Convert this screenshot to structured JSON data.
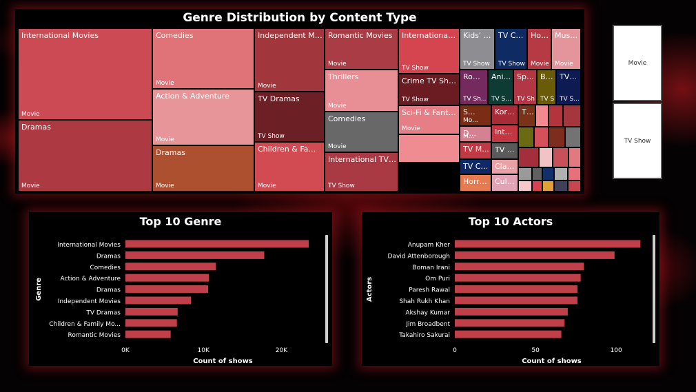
{
  "treemap": {
    "title": "Genre Distribution by Content Type",
    "tiles": [
      {
        "name": "International Movies",
        "type": "Movie",
        "color": "#cc4a54"
      },
      {
        "name": "Dramas",
        "type": "Movie",
        "color": "#ad3a42"
      },
      {
        "name": "Comedies",
        "type": "Movie",
        "color": "#e07378"
      },
      {
        "name": "Action & Adventure",
        "type": "Movie",
        "color": "#e8959a"
      },
      {
        "name": "Dramas",
        "type": "Movie",
        "color": "#ac5030"
      },
      {
        "name": "Independent Mov...",
        "type": "Movie",
        "color": "#a1363c"
      },
      {
        "name": "TV Dramas",
        "type": "TV Show",
        "color": "#6c2026"
      },
      {
        "name": "Children & Family ...",
        "type": "Movie",
        "color": "#d24a52"
      },
      {
        "name": "Romantic Movies",
        "type": "Movie",
        "color": "#a93c44"
      },
      {
        "name": "Thrillers",
        "type": "Movie",
        "color": "#e88f95"
      },
      {
        "name": "Comedies",
        "type": "Movie",
        "color": "#686868"
      },
      {
        "name": "International TV Sho...",
        "type": "TV Show",
        "color": "#a93a44"
      },
      {
        "name": "International T...",
        "type": "TV Show",
        "color": "#d4454f"
      },
      {
        "name": "Crime TV Shows",
        "type": "TV Show",
        "color": "#6a1c22"
      },
      {
        "name": "Sci-Fi & Fantasy",
        "type": "Movie",
        "color": "#e77d85"
      },
      {
        "name": "Kids' TV",
        "type": "TV Show",
        "color": "#8e8e92"
      },
      {
        "name": "TV Comedies",
        "type": "TV Show",
        "color": "#0e2b63"
      },
      {
        "name": "Horror ...",
        "type": "Movie",
        "color": "#b53a44"
      },
      {
        "name": "Musi...",
        "type": "Movie",
        "color": "#e3959b"
      },
      {
        "name": "Rom...",
        "type": "TV Sh...",
        "color": "#742a5e"
      },
      {
        "name": "Ani...",
        "type": "TV S...",
        "color": "#0e3c34"
      },
      {
        "name": "Span...",
        "type": "TV Sh...",
        "color": "#b03743"
      },
      {
        "name": "Britis...",
        "type": "TV Sh...",
        "color": "#6a5b08"
      },
      {
        "name": "TV ...",
        "type": "TV S...",
        "color": "#0e1a52"
      },
      {
        "name": "S...",
        "type": "Mo...",
        "color": "#7a2c14"
      },
      {
        "name": "D...",
        "type": "M...",
        "color": "#d48292"
      },
      {
        "name": "TV M...",
        "type": "",
        "color": "#c03a45"
      },
      {
        "name": "TV Co...",
        "type": "",
        "color": "#102864"
      },
      {
        "name": "Horro...",
        "type": "",
        "color": "#e67b52"
      },
      {
        "name": "Korea...",
        "type": "",
        "color": "#a82c38"
      },
      {
        "name": "Intern...",
        "type": "",
        "color": "#c43641"
      },
      {
        "name": "TV D...",
        "type": "",
        "color": "#5a5a5a"
      },
      {
        "name": "Clas...",
        "type": "",
        "color": "#eaa1a5"
      },
      {
        "name": "Cult...",
        "type": "",
        "color": "#e3a3b6"
      },
      {
        "name": "Thril...",
        "type": "",
        "color": "#7a3218"
      },
      {
        "name": "",
        "type": "",
        "color": "#f08a90"
      },
      {
        "name": "",
        "type": "",
        "color": "#b3343d"
      },
      {
        "name": "",
        "type": "",
        "color": "#a3373d"
      },
      {
        "name": "",
        "type": "",
        "color": "#6a6a12"
      },
      {
        "name": "",
        "type": "",
        "color": "#d4505a"
      },
      {
        "name": "",
        "type": "",
        "color": "#7e2c1e"
      },
      {
        "name": "",
        "type": "",
        "color": "#737373"
      },
      {
        "name": "",
        "type": "",
        "color": "#a22f3a"
      },
      {
        "name": "",
        "type": "",
        "color": "#f1c3c6"
      },
      {
        "name": "",
        "type": "",
        "color": "#c85058"
      },
      {
        "name": "",
        "type": "",
        "color": "#e07a80"
      },
      {
        "name": "",
        "type": "",
        "color": "#9a9a9a"
      },
      {
        "name": "",
        "type": "",
        "color": "#606060"
      },
      {
        "name": "",
        "type": "",
        "color": "#11306a"
      },
      {
        "name": "",
        "type": "",
        "color": "#b0b0b0"
      },
      {
        "name": "",
        "type": "",
        "color": "#e8707a"
      },
      {
        "name": "",
        "type": "",
        "color": "#f5c8cb"
      },
      {
        "name": "",
        "type": "",
        "color": "#d9424c"
      },
      {
        "name": "",
        "type": "",
        "color": "#dfa23a"
      },
      {
        "name": "",
        "type": "",
        "color": "#40405a"
      },
      {
        "name": "",
        "type": "",
        "color": "#c84650"
      },
      {
        "name": "",
        "type": "",
        "color": "#ee8c92"
      },
      {
        "name": "",
        "type": "",
        "color": "#999999"
      }
    ]
  },
  "slicer": {
    "options": [
      "Movie",
      "TV Show"
    ]
  },
  "chart_data": [
    {
      "type": "bar",
      "orientation": "horizontal",
      "title": "Top 10 Genre",
      "xlabel": "Count of shows",
      "ylabel": "Genre",
      "categories": [
        "International Movies",
        "Dramas",
        "Comedies",
        "Action & Adventure",
        "Dramas",
        "Independent Movies",
        "TV Dramas",
        "Children & Family Mo...",
        "Romantic Movies"
      ],
      "values": [
        23500,
        17800,
        11600,
        10700,
        10600,
        8400,
        6700,
        6600,
        5800
      ],
      "xlim": [
        0,
        25000
      ],
      "ticks": [
        0,
        10000,
        20000
      ],
      "tick_labels": [
        "0K",
        "10K",
        "20K"
      ],
      "bar_color": "#c0404a",
      "grid": false
    },
    {
      "type": "bar",
      "orientation": "horizontal",
      "title": "Top 10 Actors",
      "xlabel": "Count of shows",
      "ylabel": "Actors",
      "categories": [
        "Anupam Kher",
        "David Attenborough",
        "Boman Irani",
        "Om Puri",
        "Paresh Rawal",
        "Shah Rukh Khan",
        "Akshay Kumar",
        "Jim Broadbent",
        "Takahiro Sakurai"
      ],
      "values": [
        115,
        99,
        80,
        78,
        76,
        76,
        70,
        68,
        66
      ],
      "xlim": [
        0,
        120
      ],
      "ticks": [
        0,
        50,
        100
      ],
      "tick_labels": [
        "0",
        "50",
        "100"
      ],
      "bar_color": "#c0404a",
      "grid": false
    }
  ]
}
